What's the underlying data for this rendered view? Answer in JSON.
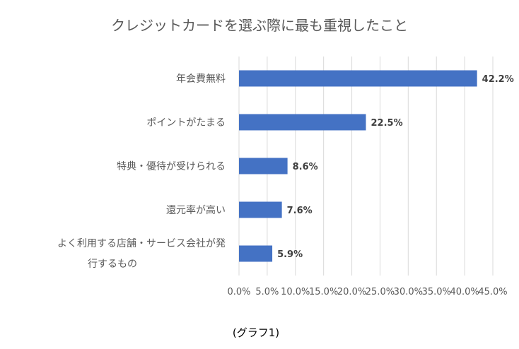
{
  "chart_data": {
    "type": "bar",
    "orientation": "horizontal",
    "title": "クレジットカードを選ぶ際に最も重視したこと",
    "categories": [
      [
        "年会費無料"
      ],
      [
        "ポイントがたまる"
      ],
      [
        "特典・優待が受けられる"
      ],
      [
        "還元率が高い"
      ],
      [
        "よく利用する店舗・サービス会社が発",
        "行するもの"
      ]
    ],
    "values": [
      42.2,
      22.5,
      8.6,
      7.6,
      5.9
    ],
    "data_labels": [
      "42.2%",
      "22.5%",
      "8.6%",
      "7.6%",
      "5.9%"
    ],
    "xlim": [
      0,
      45
    ],
    "x_ticks": [
      0,
      5,
      10,
      15,
      20,
      25,
      30,
      35,
      40,
      45
    ],
    "x_tick_labels": [
      "0.0%",
      "5.0%",
      "10.0%",
      "15.0%",
      "20.0%",
      "25.0%",
      "30.0%",
      "35.0%",
      "40.0%",
      "45.0%"
    ],
    "bar_color": "#4472C4",
    "grid": true,
    "legend": "none"
  },
  "caption": "(グラフ1)"
}
